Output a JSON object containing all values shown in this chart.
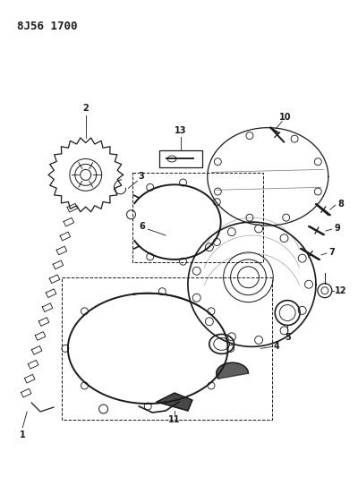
{
  "title": "8J56 1700",
  "background_color": "#ffffff",
  "fig_width": 4.0,
  "fig_height": 5.33,
  "dpi": 100,
  "line_color": "#1a1a1a",
  "label_fontsize": 7,
  "title_fontsize": 9
}
